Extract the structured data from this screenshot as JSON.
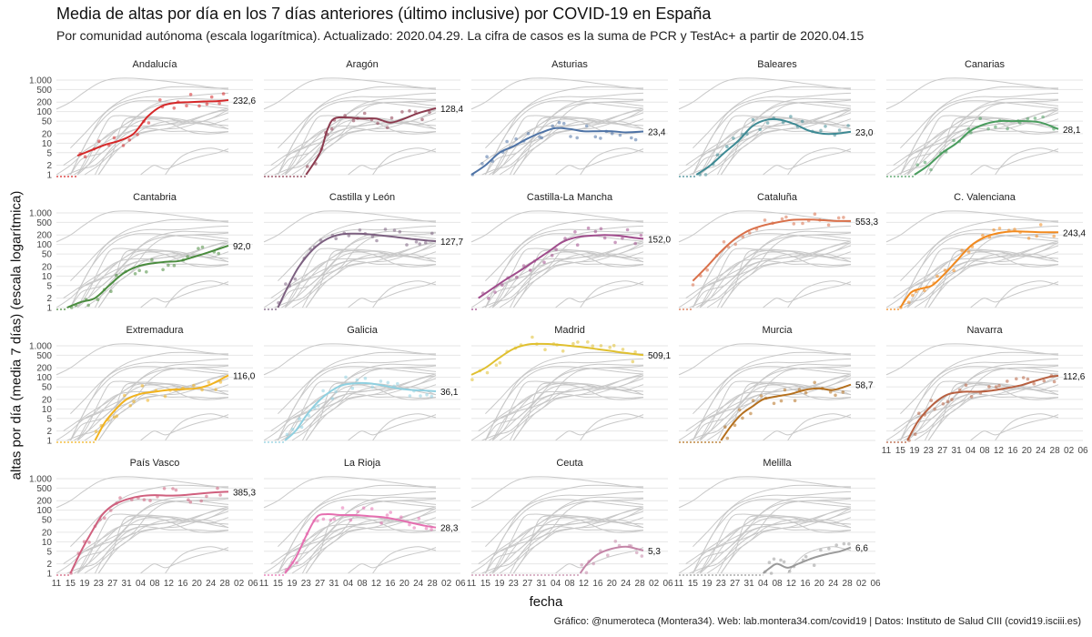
{
  "header": {
    "title": "Media de altas por día en los 7 días anteriores (último inclusive) por COVID-19 en España",
    "subtitle": "Por comunidad autónoma (escala logarítmica). Actualizado: 2020.04.29. La cifra de casos es la suma de PCR y TestAc+ a partir de 2020.04.15",
    "ylabel": "altas por día (media 7 días) (escala logarítmica)",
    "xlabel": "fecha",
    "caption": "Gráfico: @numeroteca (Montera34). Web: lab.montera34.com/covid19 | Datos: Instituto de Salud CIII (covid19.isciii.es)"
  },
  "chart_data": {
    "type": "line",
    "scale": "log",
    "ylim": [
      1,
      1000
    ],
    "yticks": [
      1,
      2,
      5,
      10,
      20,
      50,
      100,
      200,
      500,
      1000
    ],
    "ytick_labels": [
      "1",
      "2",
      "5",
      "10",
      "20",
      "50",
      "100",
      "200",
      "500",
      "1.000"
    ],
    "xticks": [
      "11",
      "15",
      "19",
      "23",
      "27",
      "31",
      "04",
      "08",
      "12",
      "16",
      "20",
      "24",
      "28",
      "02",
      "06"
    ],
    "grid": true,
    "x_note": "day index 0 = March 11, 2020",
    "panels": [
      {
        "name": "Andalucía",
        "color": "#d62728",
        "label": "232,6",
        "start": 6,
        "points": [
          [
            6,
            4
          ],
          [
            10,
            6
          ],
          [
            14,
            9
          ],
          [
            18,
            12
          ],
          [
            22,
            20
          ],
          [
            26,
            70
          ],
          [
            30,
            150
          ],
          [
            34,
            190
          ],
          [
            38,
            200
          ],
          [
            42,
            210
          ],
          [
            46,
            215
          ],
          [
            49,
            232.6
          ]
        ]
      },
      {
        "name": "Aragón",
        "color": "#8c3b4f",
        "label": "128,4",
        "start": 12,
        "points": [
          [
            12,
            1
          ],
          [
            16,
            5
          ],
          [
            18,
            25
          ],
          [
            20,
            60
          ],
          [
            24,
            65
          ],
          [
            28,
            60
          ],
          [
            32,
            60
          ],
          [
            36,
            45
          ],
          [
            40,
            60
          ],
          [
            44,
            90
          ],
          [
            49,
            128.4
          ]
        ]
      },
      {
        "name": "Asturias",
        "color": "#4e73a6",
        "label": "23,4",
        "start": 0,
        "points": [
          [
            0,
            1
          ],
          [
            4,
            2
          ],
          [
            8,
            5
          ],
          [
            12,
            8
          ],
          [
            16,
            14
          ],
          [
            20,
            22
          ],
          [
            24,
            30
          ],
          [
            28,
            28
          ],
          [
            32,
            24
          ],
          [
            36,
            24
          ],
          [
            40,
            24
          ],
          [
            44,
            22
          ],
          [
            49,
            23.4
          ]
        ]
      },
      {
        "name": "Baleares",
        "color": "#3e8a94",
        "label": "23,0",
        "start": 5,
        "points": [
          [
            5,
            1
          ],
          [
            9,
            2
          ],
          [
            13,
            5
          ],
          [
            17,
            12
          ],
          [
            21,
            35
          ],
          [
            25,
            55
          ],
          [
            29,
            55
          ],
          [
            33,
            40
          ],
          [
            37,
            25
          ],
          [
            41,
            20
          ],
          [
            45,
            20
          ],
          [
            49,
            23.0
          ]
        ]
      },
      {
        "name": "Canarias",
        "color": "#4a9c5e",
        "label": "28,1",
        "start": 8,
        "points": [
          [
            8,
            1
          ],
          [
            12,
            2
          ],
          [
            16,
            5
          ],
          [
            20,
            10
          ],
          [
            24,
            25
          ],
          [
            28,
            40
          ],
          [
            32,
            50
          ],
          [
            36,
            50
          ],
          [
            40,
            50
          ],
          [
            44,
            45
          ],
          [
            49,
            28.1
          ]
        ]
      },
      {
        "name": "Cantabria",
        "color": "#4a8c3e",
        "label": "92,0",
        "start": 3,
        "points": [
          [
            3,
            1
          ],
          [
            7,
            1.5
          ],
          [
            11,
            2
          ],
          [
            15,
            5
          ],
          [
            19,
            12
          ],
          [
            23,
            20
          ],
          [
            27,
            25
          ],
          [
            31,
            28
          ],
          [
            35,
            30
          ],
          [
            39,
            40
          ],
          [
            43,
            55
          ],
          [
            49,
            92.0
          ]
        ]
      },
      {
        "name": "Castilla y León",
        "color": "#7c6080",
        "label": "127,7",
        "start": 4,
        "points": [
          [
            4,
            1
          ],
          [
            7,
            5
          ],
          [
            10,
            20
          ],
          [
            14,
            70
          ],
          [
            18,
            150
          ],
          [
            22,
            210
          ],
          [
            26,
            220
          ],
          [
            30,
            210
          ],
          [
            34,
            190
          ],
          [
            38,
            170
          ],
          [
            42,
            150
          ],
          [
            46,
            135
          ],
          [
            49,
            127.7
          ]
        ]
      },
      {
        "name": "Castilla-La Mancha",
        "color": "#a04c8c",
        "label": "152,0",
        "start": 2,
        "points": [
          [
            2,
            2
          ],
          [
            6,
            4
          ],
          [
            10,
            8
          ],
          [
            14,
            15
          ],
          [
            18,
            30
          ],
          [
            22,
            60
          ],
          [
            26,
            120
          ],
          [
            30,
            170
          ],
          [
            34,
            190
          ],
          [
            38,
            200
          ],
          [
            42,
            190
          ],
          [
            46,
            165
          ],
          [
            49,
            152.0
          ]
        ]
      },
      {
        "name": "Cataluña",
        "color": "#d9704a",
        "label": "553,3",
        "start": 4,
        "points": [
          [
            4,
            7
          ],
          [
            8,
            20
          ],
          [
            12,
            60
          ],
          [
            16,
            150
          ],
          [
            20,
            280
          ],
          [
            24,
            400
          ],
          [
            28,
            500
          ],
          [
            32,
            600
          ],
          [
            36,
            620
          ],
          [
            40,
            600
          ],
          [
            44,
            560
          ],
          [
            49,
            553.3
          ]
        ]
      },
      {
        "name": "C. Valenciana",
        "color": "#f28a1e",
        "label": "243,4",
        "start": 4,
        "points": [
          [
            4,
            1
          ],
          [
            7,
            3
          ],
          [
            10,
            4
          ],
          [
            13,
            5
          ],
          [
            16,
            10
          ],
          [
            20,
            30
          ],
          [
            24,
            90
          ],
          [
            28,
            170
          ],
          [
            32,
            230
          ],
          [
            36,
            260
          ],
          [
            40,
            255
          ],
          [
            44,
            245
          ],
          [
            49,
            243.4
          ]
        ]
      },
      {
        "name": "Extremadura",
        "color": "#f2b31e",
        "label": "116,0",
        "start": 11,
        "points": [
          [
            11,
            1
          ],
          [
            14,
            4
          ],
          [
            17,
            10
          ],
          [
            20,
            20
          ],
          [
            24,
            30
          ],
          [
            28,
            35
          ],
          [
            32,
            40
          ],
          [
            36,
            42
          ],
          [
            40,
            45
          ],
          [
            44,
            60
          ],
          [
            49,
            116.0
          ]
        ]
      },
      {
        "name": "Galicia",
        "color": "#8fd0e0",
        "label": "36,1",
        "start": 6,
        "points": [
          [
            6,
            1
          ],
          [
            9,
            2
          ],
          [
            12,
            6
          ],
          [
            15,
            15
          ],
          [
            18,
            30
          ],
          [
            22,
            55
          ],
          [
            26,
            65
          ],
          [
            30,
            65
          ],
          [
            34,
            55
          ],
          [
            38,
            45
          ],
          [
            42,
            40
          ],
          [
            46,
            38
          ],
          [
            49,
            36.1
          ]
        ]
      },
      {
        "name": "Madrid",
        "color": "#e0c030",
        "label": "509,1",
        "start": 0,
        "points": [
          [
            0,
            120
          ],
          [
            4,
            200
          ],
          [
            8,
            420
          ],
          [
            12,
            800
          ],
          [
            16,
            1100
          ],
          [
            20,
            1150
          ],
          [
            24,
            1100
          ],
          [
            28,
            1000
          ],
          [
            32,
            900
          ],
          [
            36,
            780
          ],
          [
            40,
            680
          ],
          [
            44,
            590
          ],
          [
            49,
            509.1
          ]
        ]
      },
      {
        "name": "Murcia",
        "color": "#b5701e",
        "label": "58,7",
        "start": 12,
        "points": [
          [
            12,
            1
          ],
          [
            15,
            3
          ],
          [
            18,
            7
          ],
          [
            21,
            12
          ],
          [
            24,
            20
          ],
          [
            28,
            25
          ],
          [
            32,
            30
          ],
          [
            36,
            40
          ],
          [
            40,
            45
          ],
          [
            44,
            40
          ],
          [
            49,
            58.7
          ]
        ]
      },
      {
        "name": "Navarra",
        "color": "#b86040",
        "label": "112,6",
        "start": 6,
        "points": [
          [
            6,
            1
          ],
          [
            9,
            4
          ],
          [
            12,
            10
          ],
          [
            15,
            20
          ],
          [
            18,
            30
          ],
          [
            22,
            35
          ],
          [
            26,
            35
          ],
          [
            30,
            38
          ],
          [
            34,
            45
          ],
          [
            38,
            55
          ],
          [
            42,
            75
          ],
          [
            46,
            100
          ],
          [
            49,
            112.6
          ]
        ]
      },
      {
        "name": "País Vasco",
        "color": "#d0607e",
        "label": "385,3",
        "start": 4,
        "points": [
          [
            4,
            1
          ],
          [
            7,
            5
          ],
          [
            10,
            20
          ],
          [
            13,
            70
          ],
          [
            16,
            140
          ],
          [
            20,
            220
          ],
          [
            24,
            280
          ],
          [
            28,
            300
          ],
          [
            32,
            290
          ],
          [
            36,
            300
          ],
          [
            40,
            330
          ],
          [
            44,
            360
          ],
          [
            49,
            385.3
          ]
        ]
      },
      {
        "name": "La Rioja",
        "color": "#e56fb0",
        "label": "28,3",
        "start": 6,
        "points": [
          [
            6,
            1
          ],
          [
            9,
            3
          ],
          [
            12,
            15
          ],
          [
            15,
            60
          ],
          [
            18,
            75
          ],
          [
            22,
            70
          ],
          [
            26,
            70
          ],
          [
            30,
            65
          ],
          [
            34,
            60
          ],
          [
            38,
            50
          ],
          [
            42,
            40
          ],
          [
            46,
            32
          ],
          [
            49,
            28.3
          ]
        ]
      },
      {
        "name": "Ceuta",
        "color": "#c486a8",
        "label": "5,3",
        "start": 31,
        "points": [
          [
            31,
            1
          ],
          [
            33,
            2
          ],
          [
            36,
            4
          ],
          [
            40,
            6
          ],
          [
            44,
            7
          ],
          [
            47,
            6
          ],
          [
            49,
            5.3
          ]
        ]
      },
      {
        "name": "Melilla",
        "color": "#9a9a9a",
        "label": "6,6",
        "start": 24,
        "points": [
          [
            24,
            1
          ],
          [
            26,
            1.5
          ],
          [
            28,
            2
          ],
          [
            31,
            1.5
          ],
          [
            34,
            2
          ],
          [
            38,
            3
          ],
          [
            42,
            4
          ],
          [
            46,
            5
          ],
          [
            49,
            6.6
          ]
        ]
      }
    ]
  }
}
